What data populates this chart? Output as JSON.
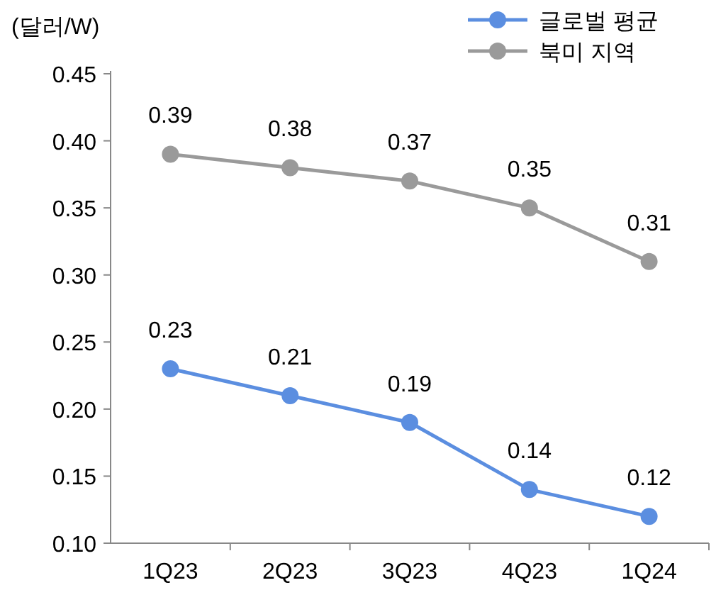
{
  "chart_data": {
    "type": "line",
    "ylabel": "(달러/W)",
    "categories": [
      "1Q23",
      "2Q23",
      "3Q23",
      "4Q23",
      "1Q24"
    ],
    "series": [
      {
        "name": "글로벌 평균",
        "color": "#5b8ee0",
        "values": [
          0.23,
          0.21,
          0.19,
          0.14,
          0.12
        ]
      },
      {
        "name": "북미 지역",
        "color": "#9a9a9a",
        "values": [
          0.39,
          0.38,
          0.37,
          0.35,
          0.31
        ]
      }
    ],
    "ylim": [
      0.1,
      0.45
    ],
    "yticks": [
      {
        "value": 0.1,
        "label": "0.10"
      },
      {
        "value": 0.15,
        "label": "0.15"
      },
      {
        "value": 0.2,
        "label": "0.20"
      },
      {
        "value": 0.25,
        "label": "0.25"
      },
      {
        "value": 0.3,
        "label": "0.30"
      },
      {
        "value": 0.35,
        "label": "0.35"
      },
      {
        "value": 0.4,
        "label": "0.40"
      },
      {
        "value": 0.45,
        "label": "0.45"
      }
    ],
    "grid": false,
    "legend": "top right",
    "marker": "circle",
    "line_style": "solid",
    "data_labels": true
  }
}
